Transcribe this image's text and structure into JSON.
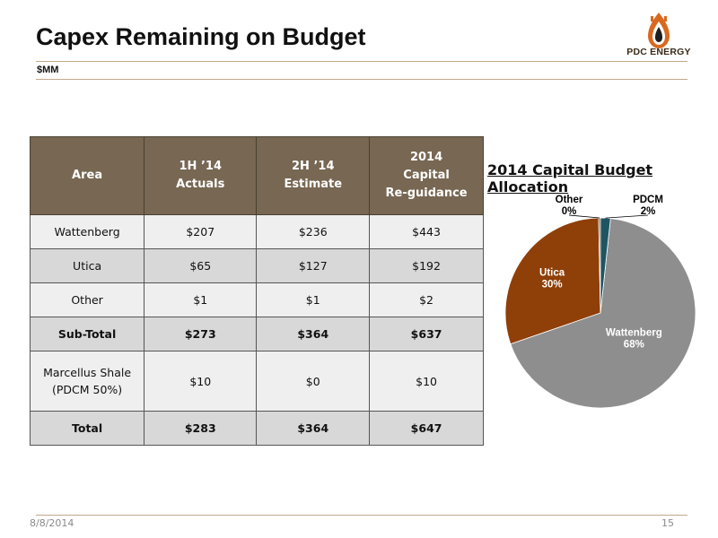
{
  "header": {
    "title": "Capex Remaining on Budget",
    "subtitle": "$MM",
    "logo_text": "PDC ENERGY",
    "logo_icon": "oil-drop-flame-logo"
  },
  "table": {
    "headers": [
      "Area",
      "1H ’14\nActuals",
      "2H ’14\nEstimate",
      "2014\nCapital\nRe-guidance"
    ],
    "rows": [
      [
        "Wattenberg",
        "$207",
        "$236",
        "$443"
      ],
      [
        "Utica",
        "$65",
        "$127",
        "$192"
      ],
      [
        "Other",
        "$1",
        "$1",
        "$2"
      ],
      [
        "Sub-Total",
        "$273",
        "$364",
        "$637"
      ],
      [
        "Marcellus Shale\n(PDCM 50%)",
        "$10",
        "$0",
        "$10"
      ],
      [
        "Total",
        "$283",
        "$364",
        "$647"
      ]
    ]
  },
  "chart_data": {
    "type": "pie",
    "title": "2014 Capital Budget Allocation",
    "slices": [
      {
        "name": "Wattenberg",
        "label": "68%",
        "value": 68,
        "color": "#8e8e8e"
      },
      {
        "name": "Utica",
        "label": "30%",
        "value": 30,
        "color": "#8f3f08"
      },
      {
        "name": "Other",
        "label": "0%",
        "value": 0.3,
        "color": "#6e5a45"
      },
      {
        "name": "PDCM",
        "label": "2%",
        "value": 1.7,
        "color": "#1f5563"
      }
    ]
  },
  "footer": {
    "date": "8/8/2014",
    "page": "15"
  }
}
